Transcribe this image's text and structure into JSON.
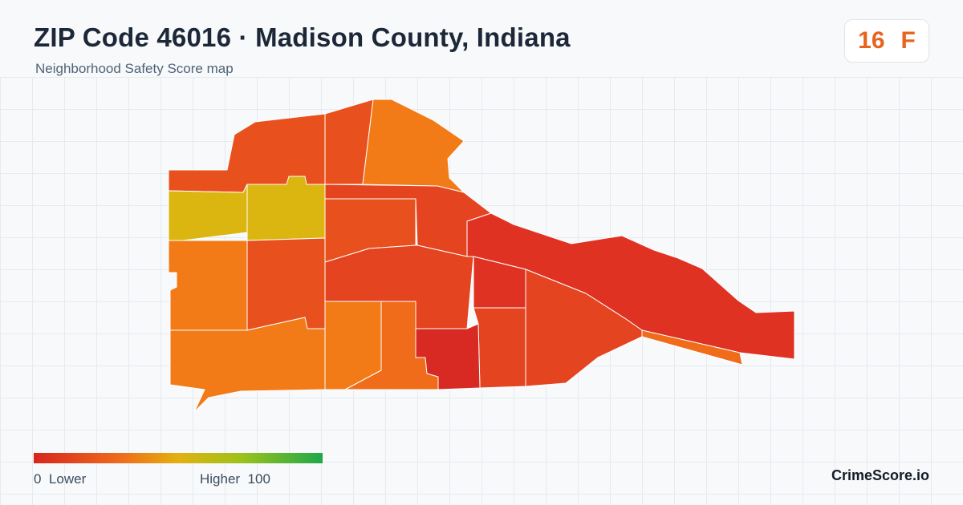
{
  "header": {
    "title": "ZIP Code 46016 · Madison County, Indiana",
    "subtitle": "Neighborhood Safety Score map"
  },
  "score": {
    "value": "16",
    "grade": "F",
    "color": "#e8641e"
  },
  "legend": {
    "low_value": "0",
    "low_label": "Lower",
    "high_label": "Higher",
    "high_value": "100",
    "colors": [
      "#d7261e",
      "#ef6b1b",
      "#e3b10f",
      "#9cc21a",
      "#1ea84a"
    ]
  },
  "brand": "CrimeScore.io",
  "map": {
    "region_colors": {
      "red": "#df3222",
      "red_dark": "#d82a22",
      "red_orange": "#e4441f",
      "orange_red": "#e8511d",
      "orange": "#f27a17",
      "orange_mid": "#f06b1a",
      "yellow": "#dbb610",
      "green_accent": "#57b733"
    }
  }
}
